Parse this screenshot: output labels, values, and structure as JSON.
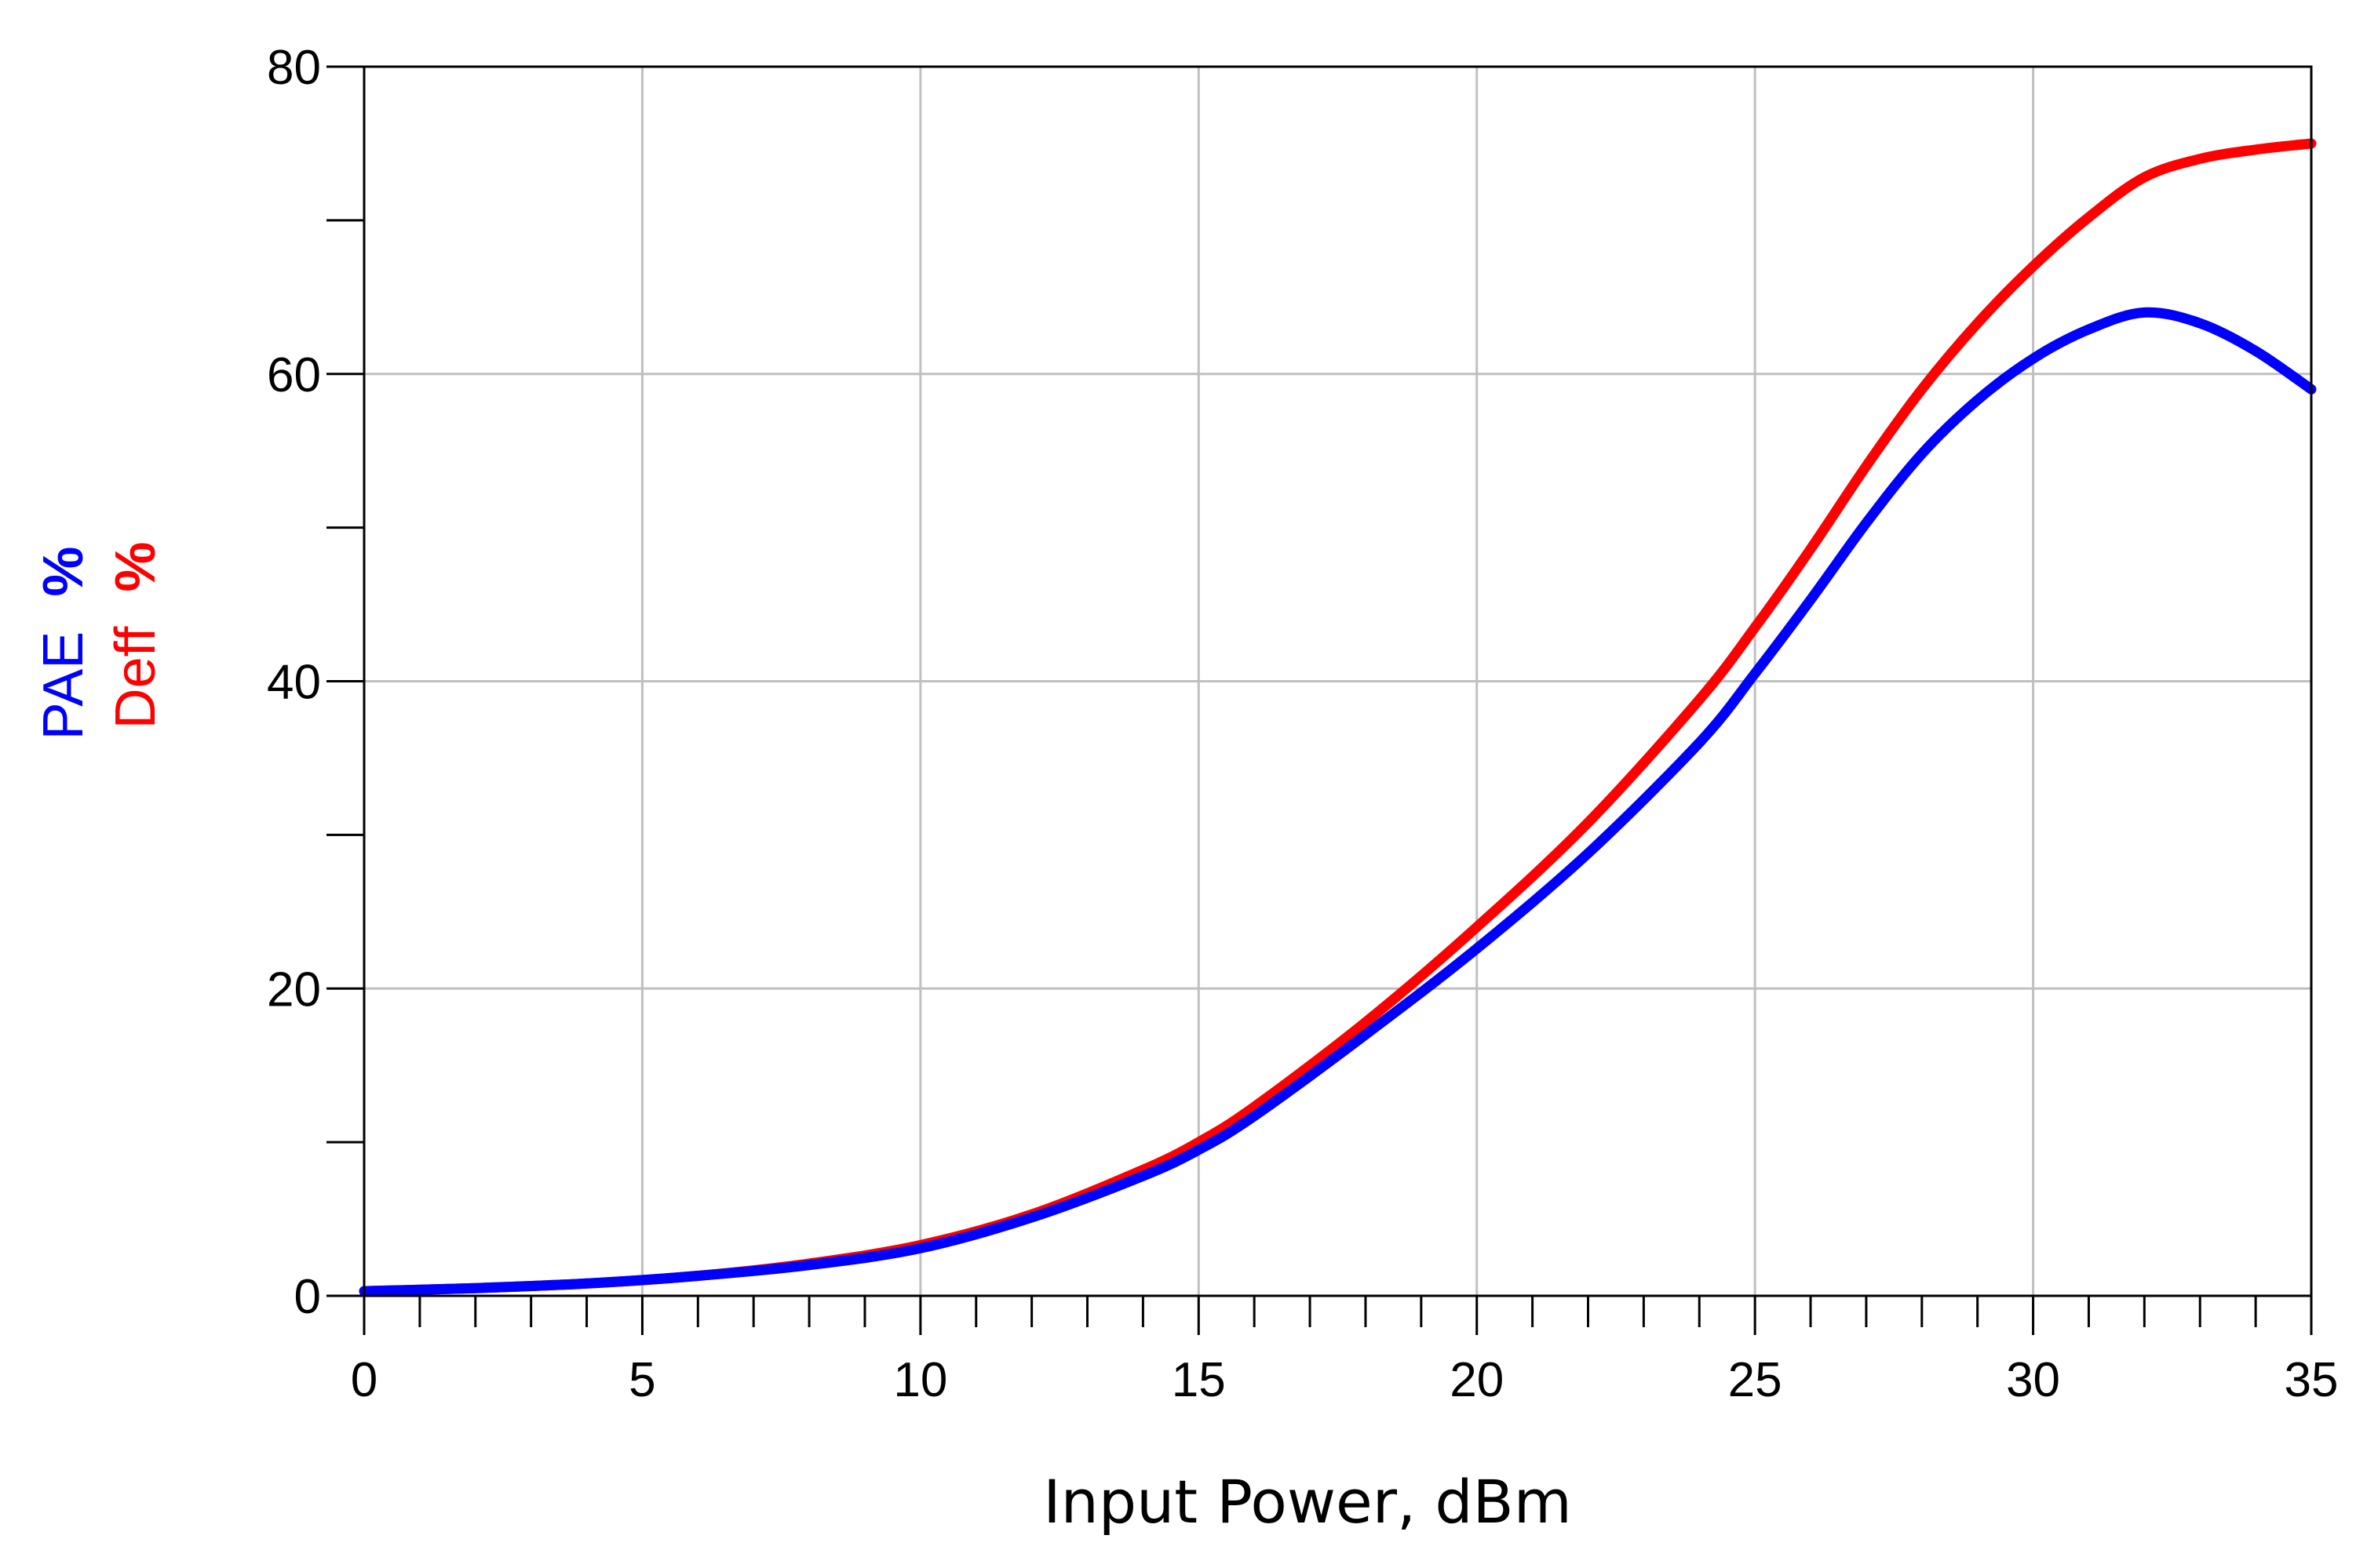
{
  "chart_data": {
    "type": "line",
    "title": "",
    "xlabel": "Input Power, dBm",
    "ylabel": [
      {
        "text": "PAE",
        "unit": "%",
        "color": "#0000ff"
      },
      {
        "text": "Deff",
        "unit": "%",
        "color": "#ff0000"
      }
    ],
    "xlim": [
      0,
      35
    ],
    "ylim": [
      0,
      80
    ],
    "x_ticks": [
      "0",
      "5",
      "10",
      "15",
      "20",
      "25",
      "30",
      "35"
    ],
    "y_ticks": [
      "0",
      "20",
      "40",
      "60",
      "80"
    ],
    "x_minor_step": 1,
    "y_minor_step": 10,
    "grid": true,
    "legend": "none",
    "series": [
      {
        "name": "Deff",
        "color": "#ff0000",
        "x": [
          0,
          2,
          4,
          6,
          8,
          10,
          12,
          14,
          15,
          16,
          18,
          20,
          22,
          24,
          25,
          26,
          27,
          28,
          29,
          30,
          31,
          32,
          33,
          34,
          35
        ],
        "y": [
          0.3,
          0.5,
          0.8,
          1.3,
          2.1,
          3.3,
          5.3,
          8.2,
          10.0,
          12.3,
          17.8,
          24.0,
          30.8,
          38.8,
          43.5,
          48.6,
          54.0,
          59.0,
          63.3,
          67.0,
          70.2,
          72.8,
          74.0,
          74.6,
          75.0
        ]
      },
      {
        "name": "PAE",
        "color": "#0000ff",
        "x": [
          0,
          2,
          4,
          6,
          8,
          10,
          12,
          14,
          15,
          16,
          18,
          20,
          22,
          24,
          25,
          26,
          27,
          28,
          29,
          30,
          31,
          32,
          33,
          34,
          35
        ],
        "y": [
          0.3,
          0.5,
          0.8,
          1.3,
          2.0,
          3.1,
          5.1,
          7.8,
          9.5,
          11.7,
          17.0,
          22.6,
          28.8,
          36.0,
          40.5,
          45.3,
          50.3,
          54.8,
          58.3,
          61.0,
          62.9,
          64.0,
          63.3,
          61.5,
          59.0
        ]
      }
    ]
  }
}
